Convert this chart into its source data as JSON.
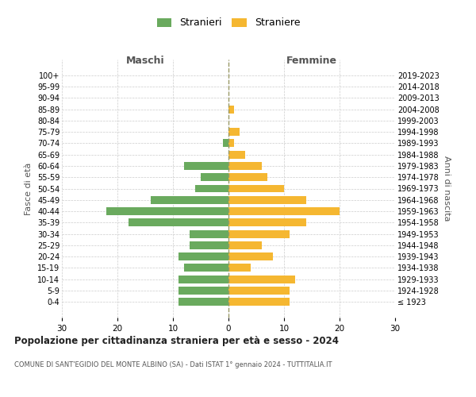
{
  "age_groups": [
    "100+",
    "95-99",
    "90-94",
    "85-89",
    "80-84",
    "75-79",
    "70-74",
    "65-69",
    "60-64",
    "55-59",
    "50-54",
    "45-49",
    "40-44",
    "35-39",
    "30-34",
    "25-29",
    "20-24",
    "15-19",
    "10-14",
    "5-9",
    "0-4"
  ],
  "birth_years": [
    "≤ 1923",
    "1924-1928",
    "1929-1933",
    "1934-1938",
    "1939-1943",
    "1944-1948",
    "1949-1953",
    "1954-1958",
    "1959-1963",
    "1964-1968",
    "1969-1973",
    "1974-1978",
    "1979-1983",
    "1984-1988",
    "1989-1993",
    "1994-1998",
    "1999-2003",
    "2004-2008",
    "2009-2013",
    "2014-2018",
    "2019-2023"
  ],
  "males": [
    0,
    0,
    0,
    0,
    0,
    0,
    1,
    0,
    8,
    5,
    6,
    14,
    22,
    18,
    7,
    7,
    9,
    8,
    9,
    9,
    9
  ],
  "females": [
    0,
    0,
    0,
    1,
    0,
    2,
    1,
    3,
    6,
    7,
    10,
    14,
    20,
    14,
    11,
    6,
    8,
    4,
    12,
    11,
    11
  ],
  "male_color": "#6aaa5e",
  "female_color": "#f5b731",
  "title": "Popolazione per cittadinanza straniera per età e sesso - 2024",
  "subtitle": "COMUNE DI SANT'EGIDIO DEL MONTE ALBINO (SA) - Dati ISTAT 1° gennaio 2024 - TUTTITALIA.IT",
  "ylabel_left": "Fasce di età",
  "ylabel_right": "Anni di nascita",
  "xlabel_left": "Maschi",
  "xlabel_right": "Femmine",
  "legend_male": "Stranieri",
  "legend_female": "Straniere",
  "xlim": 30,
  "background_color": "#ffffff",
  "grid_color": "#cccccc",
  "dashed_line_color": "#999966"
}
